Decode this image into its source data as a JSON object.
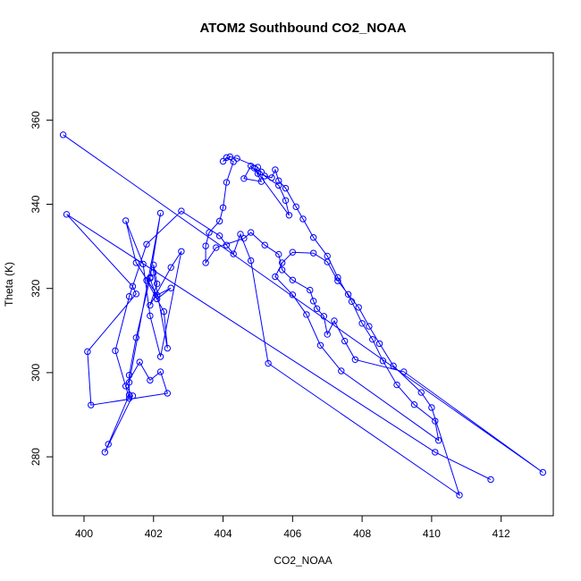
{
  "chart_data": {
    "type": "line",
    "title": "ATOM2 Southbound CO2_NOAA",
    "xlabel": "CO2_NOAA",
    "ylabel": "Theta (K)",
    "xlim": [
      399.1,
      413.5
    ],
    "ylim": [
      266.0,
      376.0
    ],
    "xticks": [
      400,
      402,
      404,
      406,
      408,
      410,
      412
    ],
    "yticks": [
      280,
      300,
      320,
      340,
      360
    ],
    "grid": false,
    "legend": "none",
    "color": "#0000ff",
    "marker": "open-circle",
    "series": [
      {
        "x": [
          399.4,
          413.2,
          409.2,
          407.8,
          407.5,
          407.2,
          407.0,
          406.9,
          406.7,
          406.6,
          406.5,
          406.0,
          405.7,
          405.6,
          405.2,
          404.8,
          404.6,
          403.8,
          403.5,
          403.5,
          403.6,
          403.9,
          404.0,
          404.1,
          404.3,
          404.1,
          404.0,
          404.2,
          404.4,
          405.0,
          405.1,
          405.2,
          405.6,
          405.8,
          405.9,
          404.9,
          405.1,
          404.6,
          404.8,
          405.0,
          405.4,
          405.5,
          405.6,
          405.8,
          406.1,
          406.3,
          406.6,
          407.0,
          407.3,
          407.7,
          408.0,
          408.3,
          408.6,
          409.0,
          409.5,
          410.1,
          410.2,
          407.4,
          406.8,
          406.4,
          406.0,
          405.5,
          405.7,
          406.0,
          406.6,
          407.0,
          407.3,
          407.6,
          407.9,
          408.2,
          408.5,
          408.9,
          409.7,
          410.0,
          410.8,
          405.3,
          404.8,
          404.5,
          404.3,
          404.1,
          403.9,
          402.8,
          401.8,
          401.3,
          400.9,
          401.3,
          401.3,
          402.2,
          401.9,
          401.8,
          402.3,
          402.4,
          402.0,
          402.0,
          402.1,
          401.9,
          402.5,
          402.8,
          402.2,
          401.9,
          401.7,
          401.2,
          401.5,
          402.1,
          402.5,
          402.1,
          401.9,
          401.5,
          401.3,
          401.3,
          400.7,
          400.6,
          401.4,
          401.2,
          401.6,
          401.9,
          402.2,
          402.4,
          400.2,
          400.1,
          401.5,
          401.4,
          399.5,
          410.1,
          411.7
        ],
        "y": [
          356.5,
          276.3,
          300.2,
          303.1,
          307.5,
          312.3,
          309.1,
          313.4,
          315.2,
          317.0,
          319.6,
          322.0,
          324.4,
          328.1,
          330.3,
          333.3,
          331.9,
          329.7,
          326.1,
          330.1,
          333.3,
          336.0,
          339.2,
          345.2,
          350.1,
          351.1,
          350.2,
          351.3,
          350.9,
          348.8,
          347.7,
          346.7,
          344.5,
          340.9,
          337.4,
          348.6,
          345.4,
          346.1,
          349.1,
          347.3,
          346.3,
          348.2,
          345.6,
          343.8,
          339.4,
          336.5,
          332.1,
          327.7,
          322.6,
          316.9,
          311.7,
          307.9,
          302.8,
          297.1,
          292.4,
          288.5,
          283.9,
          300.4,
          306.5,
          313.8,
          318.5,
          322.8,
          326.1,
          328.6,
          328.4,
          326.3,
          321.8,
          318.6,
          315.5,
          311.0,
          306.9,
          301.6,
          295.3,
          291.7,
          270.9,
          302.2,
          326.6,
          332.9,
          328.2,
          330.3,
          332.5,
          338.4,
          330.5,
          318.1,
          305.2,
          293.9,
          297.7,
          337.9,
          322.6,
          321.9,
          314.5,
          305.8,
          323.8,
          325.6,
          321.1,
          316.0,
          325.0,
          328.8,
          303.8,
          313.5,
          325.8,
          336.1,
          326.1,
          318.4,
          320.1,
          317.5,
          322.4,
          308.3,
          299.4,
          294.7,
          283.0,
          281.1,
          294.5,
          296.8,
          302.5,
          298.2,
          300.2,
          295.1,
          292.3,
          305.0,
          318.7,
          320.5,
          337.6,
          281.1,
          274.6
        ]
      }
    ]
  }
}
